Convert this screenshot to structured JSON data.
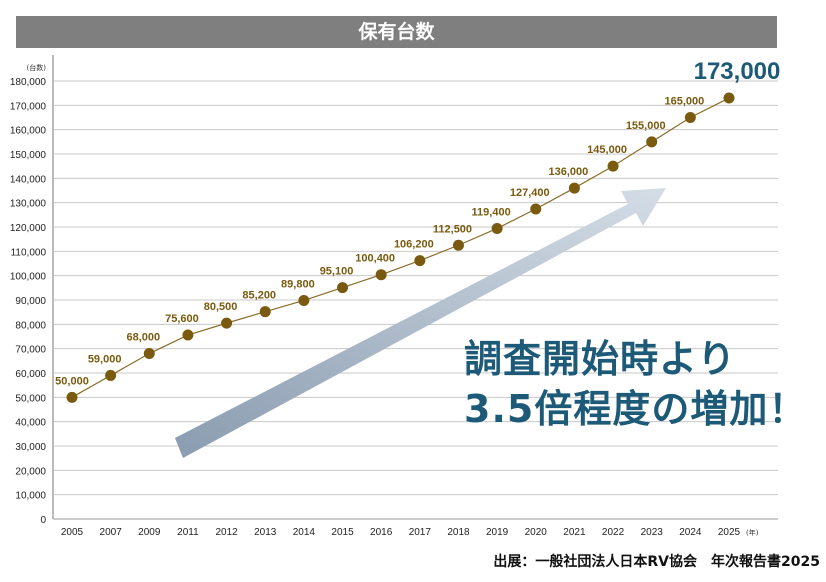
{
  "chart_data": {
    "type": "line",
    "title": "保有台数",
    "ylabel": "(台数)",
    "xunit": "(年)",
    "ylim": [
      0,
      180000
    ],
    "yticks": [
      0,
      10000,
      20000,
      30000,
      40000,
      50000,
      60000,
      70000,
      80000,
      90000,
      100000,
      110000,
      120000,
      130000,
      140000,
      150000,
      160000,
      170000,
      180000
    ],
    "ytick_labels": [
      "0",
      "10,000",
      "20,000",
      "30,000",
      "40,000",
      "50,000",
      "60,000",
      "70,000",
      "80,000",
      "90,000",
      "100,000",
      "110,000",
      "120,000",
      "130,000",
      "140,000",
      "150,000",
      "160,000",
      "170,000",
      "180,000"
    ],
    "categories": [
      "2005",
      "2007",
      "2009",
      "2011",
      "2012",
      "2013",
      "2014",
      "2015",
      "2016",
      "2017",
      "2018",
      "2019",
      "2020",
      "2021",
      "2022",
      "2023",
      "2024",
      "2025"
    ],
    "values": [
      50000,
      59000,
      68000,
      75600,
      80500,
      85200,
      89800,
      95100,
      100400,
      106200,
      112500,
      119400,
      127400,
      136000,
      145000,
      155000,
      165000,
      173000
    ],
    "data_labels": [
      "50,000",
      "59,000",
      "68,000",
      "75,600",
      "80,500",
      "85,200",
      "89,800",
      "95,100",
      "100,400",
      "106,200",
      "112,500",
      "119,400",
      "127,400",
      "136,000",
      "145,000",
      "155,000",
      "165,000",
      "173,000"
    ],
    "grid": true,
    "colors": {
      "line": "#8a6d2a",
      "marker": "#7a5a0e",
      "label": "#7a5a0e",
      "highlight": "#1d5a78",
      "title_bar": "#7f7f7f"
    }
  },
  "callout": {
    "line1": "調査開始時より",
    "line2": "3.5倍程度の増加！"
  },
  "source": "出展：一般社団法人日本RV協会　年次報告書2025"
}
